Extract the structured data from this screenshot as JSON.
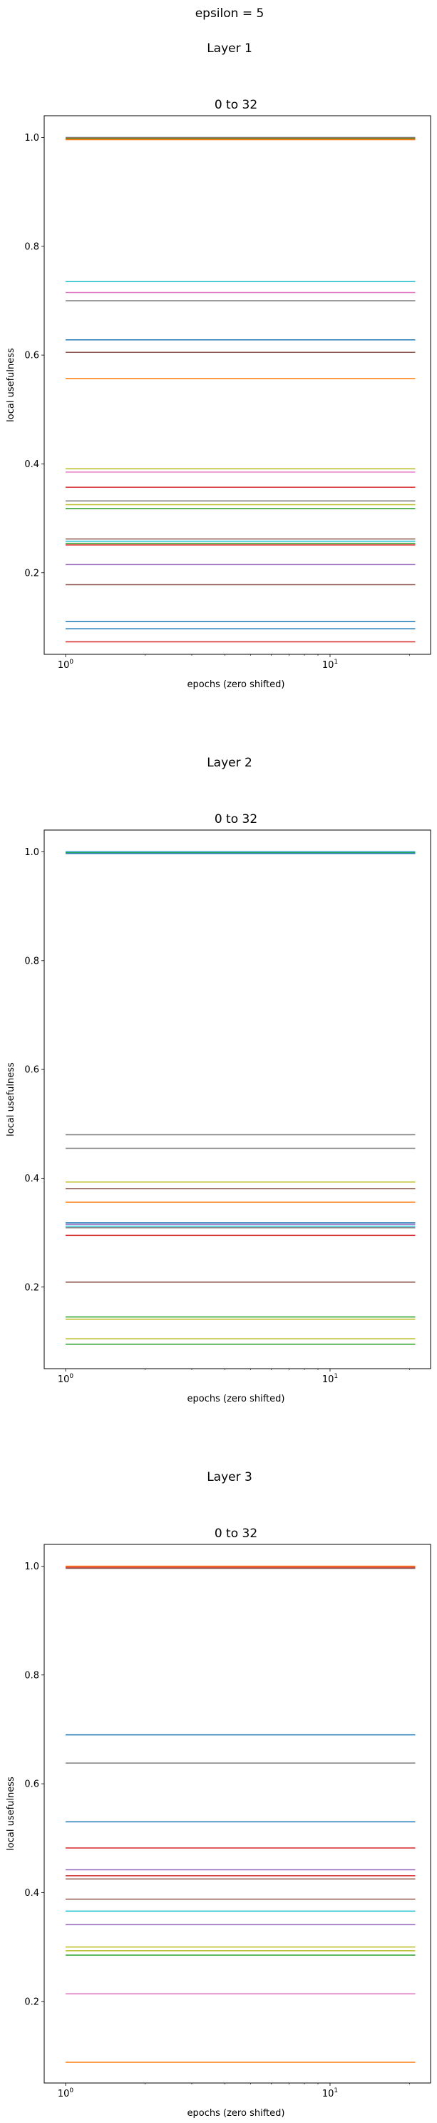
{
  "figure_title": "epsilon = 5",
  "chart_data": [
    {
      "type": "line",
      "layer_title": "Layer 1",
      "title": "0 to 32",
      "xlabel": "epochs (zero shifted)",
      "ylabel": "local usefulness",
      "xscale": "log",
      "xlim": [
        0.83,
        24
      ],
      "ylim": [
        0.05,
        1.04
      ],
      "x": [
        1,
        21
      ],
      "xticks": [
        {
          "value": 1,
          "base": "10",
          "exp": "0"
        },
        {
          "value": 10,
          "base": "10",
          "exp": "1"
        }
      ],
      "yticks": [
        {
          "value": 0.2,
          "label": "0.2"
        },
        {
          "value": 0.4,
          "label": "0.4"
        },
        {
          "value": 0.6,
          "label": "0.6"
        },
        {
          "value": 0.8,
          "label": "0.8"
        },
        {
          "value": 1.0,
          "label": "1.0"
        }
      ],
      "grid": false,
      "legend": false,
      "series": [
        {
          "color": "#1f77b4",
          "values": [
            1.0,
            1.0
          ]
        },
        {
          "color": "#ff7f0e",
          "values": [
            0.999,
            0.999
          ]
        },
        {
          "color": "#2ca02c",
          "values": [
            0.998,
            0.998
          ]
        },
        {
          "color": "#8c564b",
          "values": [
            0.997,
            0.997
          ]
        },
        {
          "color": "#ff7f0e",
          "values": [
            0.996,
            0.996
          ]
        },
        {
          "color": "#17becf",
          "values": [
            0.735,
            0.735
          ]
        },
        {
          "color": "#e377c2",
          "values": [
            0.715,
            0.715
          ]
        },
        {
          "color": "#7f7f7f",
          "values": [
            0.7,
            0.7
          ]
        },
        {
          "color": "#1f77b4",
          "values": [
            0.628,
            0.628
          ]
        },
        {
          "color": "#8c564b",
          "values": [
            0.605,
            0.605
          ]
        },
        {
          "color": "#ff7f0e",
          "values": [
            0.557,
            0.557
          ]
        },
        {
          "color": "#bcbd22",
          "values": [
            0.391,
            0.391
          ]
        },
        {
          "color": "#e377c2",
          "values": [
            0.385,
            0.385
          ]
        },
        {
          "color": "#d62728",
          "values": [
            0.357,
            0.357
          ]
        },
        {
          "color": "#7f7f7f",
          "values": [
            0.332,
            0.332
          ]
        },
        {
          "color": "#bcbd22",
          "values": [
            0.325,
            0.325
          ]
        },
        {
          "color": "#2ca02c",
          "values": [
            0.318,
            0.318
          ]
        },
        {
          "color": "#8c564b",
          "values": [
            0.262,
            0.262
          ]
        },
        {
          "color": "#17becf",
          "values": [
            0.258,
            0.258
          ]
        },
        {
          "color": "#2ca02c",
          "values": [
            0.254,
            0.254
          ]
        },
        {
          "color": "#d62728",
          "values": [
            0.251,
            0.251
          ]
        },
        {
          "color": "#9467bd",
          "values": [
            0.215,
            0.215
          ]
        },
        {
          "color": "#8c564b",
          "values": [
            0.178,
            0.178
          ]
        },
        {
          "color": "#1f77b4",
          "values": [
            0.11,
            0.11
          ]
        },
        {
          "color": "#1f77b4",
          "values": [
            0.097,
            0.097
          ]
        },
        {
          "color": "#d62728",
          "values": [
            0.073,
            0.073
          ]
        }
      ]
    },
    {
      "type": "line",
      "layer_title": "Layer 2",
      "title": "0 to 32",
      "xlabel": "epochs (zero shifted)",
      "ylabel": "local usefulness",
      "xscale": "log",
      "xlim": [
        0.83,
        24
      ],
      "ylim": [
        0.05,
        1.04
      ],
      "x": [
        1,
        21
      ],
      "xticks": [
        {
          "value": 1,
          "base": "10",
          "exp": "0"
        },
        {
          "value": 10,
          "base": "10",
          "exp": "1"
        }
      ],
      "yticks": [
        {
          "value": 0.2,
          "label": "0.2"
        },
        {
          "value": 0.4,
          "label": "0.4"
        },
        {
          "value": 0.6,
          "label": "0.6"
        },
        {
          "value": 0.8,
          "label": "0.8"
        },
        {
          "value": 1.0,
          "label": "1.0"
        }
      ],
      "grid": false,
      "legend": false,
      "series": [
        {
          "color": "#1f77b4",
          "values": [
            1.0,
            1.0
          ]
        },
        {
          "color": "#17becf",
          "values": [
            0.999,
            0.999
          ]
        },
        {
          "color": "#2ca02c",
          "values": [
            0.998,
            0.998
          ]
        },
        {
          "color": "#1f77b4",
          "values": [
            0.997,
            0.997
          ]
        },
        {
          "color": "#7f7f7f",
          "values": [
            0.48,
            0.48
          ]
        },
        {
          "color": "#7f7f7f",
          "values": [
            0.455,
            0.455
          ]
        },
        {
          "color": "#bcbd22",
          "values": [
            0.393,
            0.393
          ]
        },
        {
          "color": "#8c564b",
          "values": [
            0.381,
            0.381
          ]
        },
        {
          "color": "#ff7f0e",
          "values": [
            0.356,
            0.356
          ]
        },
        {
          "color": "#1f77b4",
          "values": [
            0.318,
            0.318
          ]
        },
        {
          "color": "#9467bd",
          "values": [
            0.315,
            0.315
          ]
        },
        {
          "color": "#17becf",
          "values": [
            0.312,
            0.312
          ]
        },
        {
          "color": "#7f7f7f",
          "values": [
            0.309,
            0.309
          ]
        },
        {
          "color": "#d62728",
          "values": [
            0.295,
            0.295
          ]
        },
        {
          "color": "#8c564b",
          "values": [
            0.209,
            0.209
          ]
        },
        {
          "color": "#2ca02c",
          "values": [
            0.145,
            0.145
          ]
        },
        {
          "color": "#bcbd22",
          "values": [
            0.141,
            0.141
          ]
        },
        {
          "color": "#bcbd22",
          "values": [
            0.105,
            0.105
          ]
        },
        {
          "color": "#2ca02c",
          "values": [
            0.095,
            0.095
          ]
        }
      ]
    },
    {
      "type": "line",
      "layer_title": "Layer 3",
      "title": "0 to 32",
      "xlabel": "epochs (zero shifted)",
      "ylabel": "local usefulness",
      "xscale": "log",
      "xlim": [
        0.83,
        24
      ],
      "ylim": [
        0.05,
        1.04
      ],
      "x": [
        1,
        21
      ],
      "xticks": [
        {
          "value": 1,
          "base": "10",
          "exp": "0"
        },
        {
          "value": 10,
          "base": "10",
          "exp": "1"
        }
      ],
      "yticks": [
        {
          "value": 0.2,
          "label": "0.2"
        },
        {
          "value": 0.4,
          "label": "0.4"
        },
        {
          "value": 0.6,
          "label": "0.6"
        },
        {
          "value": 0.8,
          "label": "0.8"
        },
        {
          "value": 1.0,
          "label": "1.0"
        }
      ],
      "grid": false,
      "legend": false,
      "series": [
        {
          "color": "#ff7f0e",
          "values": [
            1.0,
            1.0
          ]
        },
        {
          "color": "#d62728",
          "values": [
            0.998,
            0.998
          ]
        },
        {
          "color": "#8c564b",
          "values": [
            0.996,
            0.996
          ]
        },
        {
          "color": "#1f77b4",
          "values": [
            0.69,
            0.69
          ]
        },
        {
          "color": "#7f7f7f",
          "values": [
            0.638,
            0.638
          ]
        },
        {
          "color": "#1f77b4",
          "values": [
            0.53,
            0.53
          ]
        },
        {
          "color": "#d62728",
          "values": [
            0.482,
            0.482
          ]
        },
        {
          "color": "#9467bd",
          "values": [
            0.442,
            0.442
          ]
        },
        {
          "color": "#d62728",
          "values": [
            0.431,
            0.431
          ]
        },
        {
          "color": "#8c564b",
          "values": [
            0.425,
            0.425
          ]
        },
        {
          "color": "#8c564b",
          "values": [
            0.388,
            0.388
          ]
        },
        {
          "color": "#17becf",
          "values": [
            0.366,
            0.366
          ]
        },
        {
          "color": "#9467bd",
          "values": [
            0.341,
            0.341
          ]
        },
        {
          "color": "#bcbd22",
          "values": [
            0.3,
            0.3
          ]
        },
        {
          "color": "#bcbd22",
          "values": [
            0.293,
            0.293
          ]
        },
        {
          "color": "#2ca02c",
          "values": [
            0.285,
            0.285
          ]
        },
        {
          "color": "#e377c2",
          "values": [
            0.214,
            0.214
          ]
        },
        {
          "color": "#ff7f0e",
          "values": [
            0.088,
            0.088
          ]
        }
      ]
    }
  ]
}
